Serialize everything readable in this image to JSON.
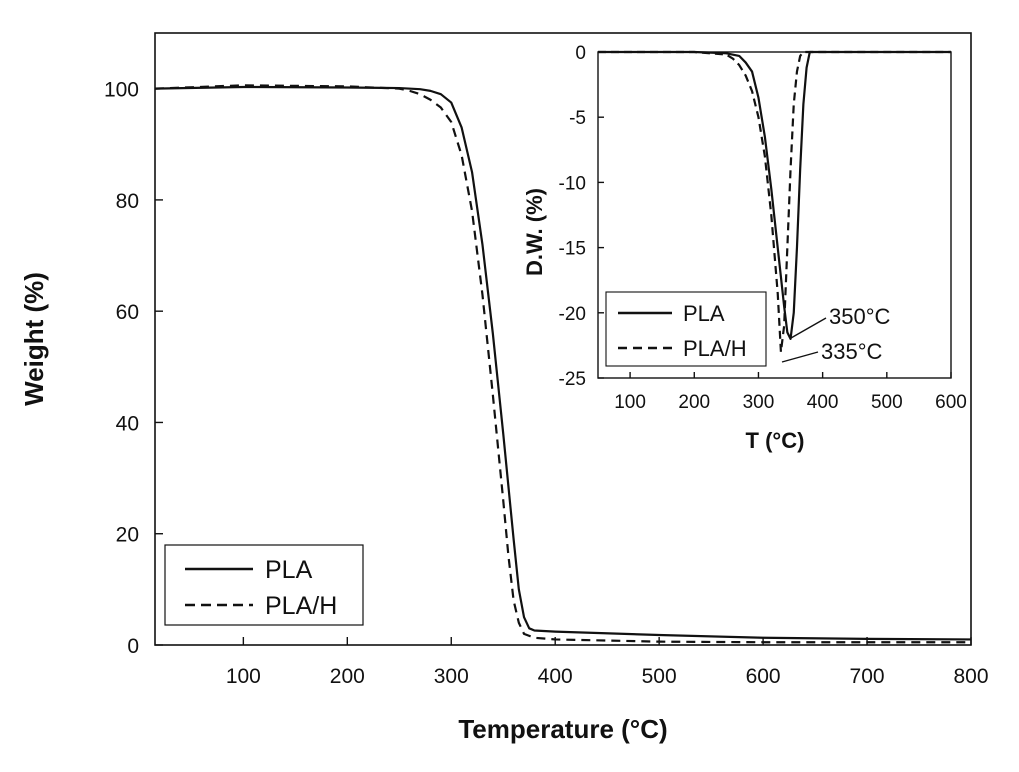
{
  "chart_data": [
    {
      "type": "line",
      "title": "",
      "xlabel": "Temperature (°C)",
      "ylabel": "Weight (%)",
      "xlim": [
        15,
        800
      ],
      "ylim": [
        0,
        110
      ],
      "xticks": [
        100,
        200,
        300,
        400,
        500,
        600,
        700,
        800
      ],
      "yticks": [
        0,
        20,
        40,
        60,
        80,
        100
      ],
      "grid": false,
      "legend_position": "bottom-left",
      "series": [
        {
          "name": "PLA",
          "style": "solid",
          "color": "#111111",
          "x": [
            15,
            100,
            200,
            250,
            270,
            280,
            290,
            300,
            310,
            320,
            330,
            340,
            350,
            360,
            365,
            370,
            375,
            380,
            400,
            500,
            600,
            700,
            800
          ],
          "y": [
            100,
            100.3,
            100.2,
            100.1,
            99.9,
            99.6,
            99,
            97.5,
            93,
            85,
            72,
            56,
            38,
            19,
            10,
            5,
            3,
            2.6,
            2.4,
            1.8,
            1.3,
            1.1,
            1
          ]
        },
        {
          "name": "PLA/H",
          "style": "dashed",
          "color": "#111111",
          "x": [
            15,
            100,
            200,
            250,
            260,
            270,
            280,
            290,
            300,
            310,
            320,
            330,
            340,
            350,
            355,
            360,
            365,
            370,
            380,
            400,
            500,
            600,
            700,
            800
          ],
          "y": [
            100,
            100.6,
            100.4,
            100,
            99.6,
            99,
            98,
            96.6,
            94,
            88,
            78,
            63,
            45,
            26,
            16,
            8,
            4,
            2,
            1.3,
            1,
            0.6,
            0.5,
            0.5,
            0.5
          ]
        }
      ]
    },
    {
      "type": "line",
      "title": "",
      "xlabel": "T (°C)",
      "ylabel": "D.W. (%)",
      "xlim": [
        50,
        600
      ],
      "ylim": [
        -25,
        0
      ],
      "xticks": [
        100,
        200,
        300,
        400,
        500,
        600
      ],
      "yticks": [
        0,
        -5,
        -10,
        -15,
        -20,
        -25
      ],
      "grid": false,
      "legend_position": "bottom-left",
      "series": [
        {
          "name": "PLA",
          "style": "solid",
          "color": "#111111",
          "x": [
            50,
            200,
            250,
            270,
            280,
            290,
            300,
            310,
            320,
            330,
            340,
            345,
            350,
            355,
            360,
            365,
            370,
            375,
            380,
            400,
            500,
            600
          ],
          "y": [
            0,
            0,
            -0.1,
            -0.3,
            -0.8,
            -1.5,
            -3.5,
            -6.5,
            -10.5,
            -15,
            -19.5,
            -21.5,
            -22,
            -20,
            -15,
            -9,
            -4,
            -1.2,
            0,
            0,
            0,
            0
          ]
        },
        {
          "name": "PLA/H",
          "style": "dashed",
          "color": "#111111",
          "x": [
            50,
            200,
            250,
            260,
            270,
            280,
            290,
            300,
            310,
            320,
            330,
            335,
            340,
            345,
            350,
            355,
            360,
            365,
            370,
            400,
            500,
            600
          ],
          "y": [
            0,
            0,
            -0.2,
            -0.5,
            -1.0,
            -1.8,
            -3,
            -5,
            -8,
            -12.5,
            -18.5,
            -23,
            -21,
            -15,
            -9,
            -4,
            -1.5,
            -0.3,
            0,
            0,
            0,
            0
          ]
        }
      ],
      "annotations": [
        {
          "text": "350°C",
          "x": 350,
          "y": -22
        },
        {
          "text": "335°C",
          "x": 335,
          "y": -23
        }
      ]
    }
  ]
}
